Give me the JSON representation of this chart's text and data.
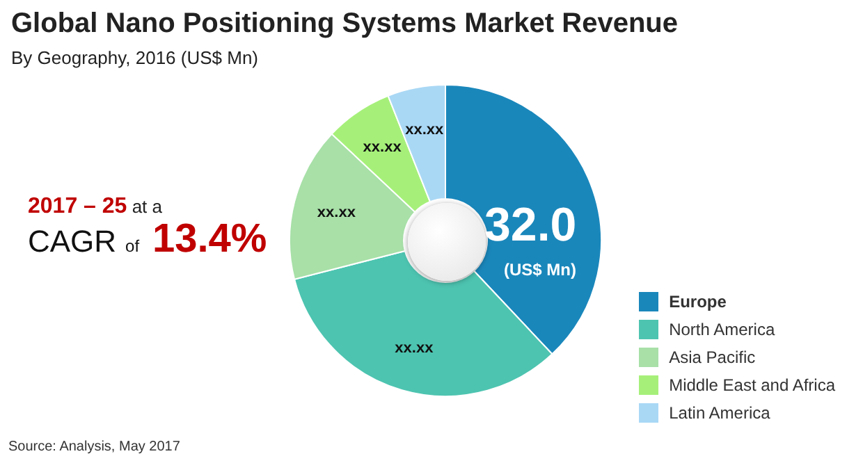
{
  "chart_data": {
    "type": "donut",
    "title": "Global Nano Positioning Systems Market Revenue",
    "subtitle": "By Geography, 2016 (US$ Mn)",
    "categories": [
      "Europe",
      "North America",
      "Asia Pacific",
      "Middle East and Africa",
      "Latin America"
    ],
    "values": [
      38,
      33,
      16,
      7,
      6
    ],
    "colors": [
      "#1a87bb",
      "#4dc4b0",
      "#a8e0a8",
      "#a6f07a",
      "#a9d8f5"
    ],
    "value_labels": [
      null,
      "xx.xx",
      "xx.xx",
      "xx.xx",
      "xx.xx"
    ],
    "legend": "bottom right",
    "annotations": [
      "2017 – 25 at a",
      "CAGR of 13.4%",
      "32.0",
      "(US$ Mn)",
      "Source: Analysis, May 2017"
    ]
  }
}
